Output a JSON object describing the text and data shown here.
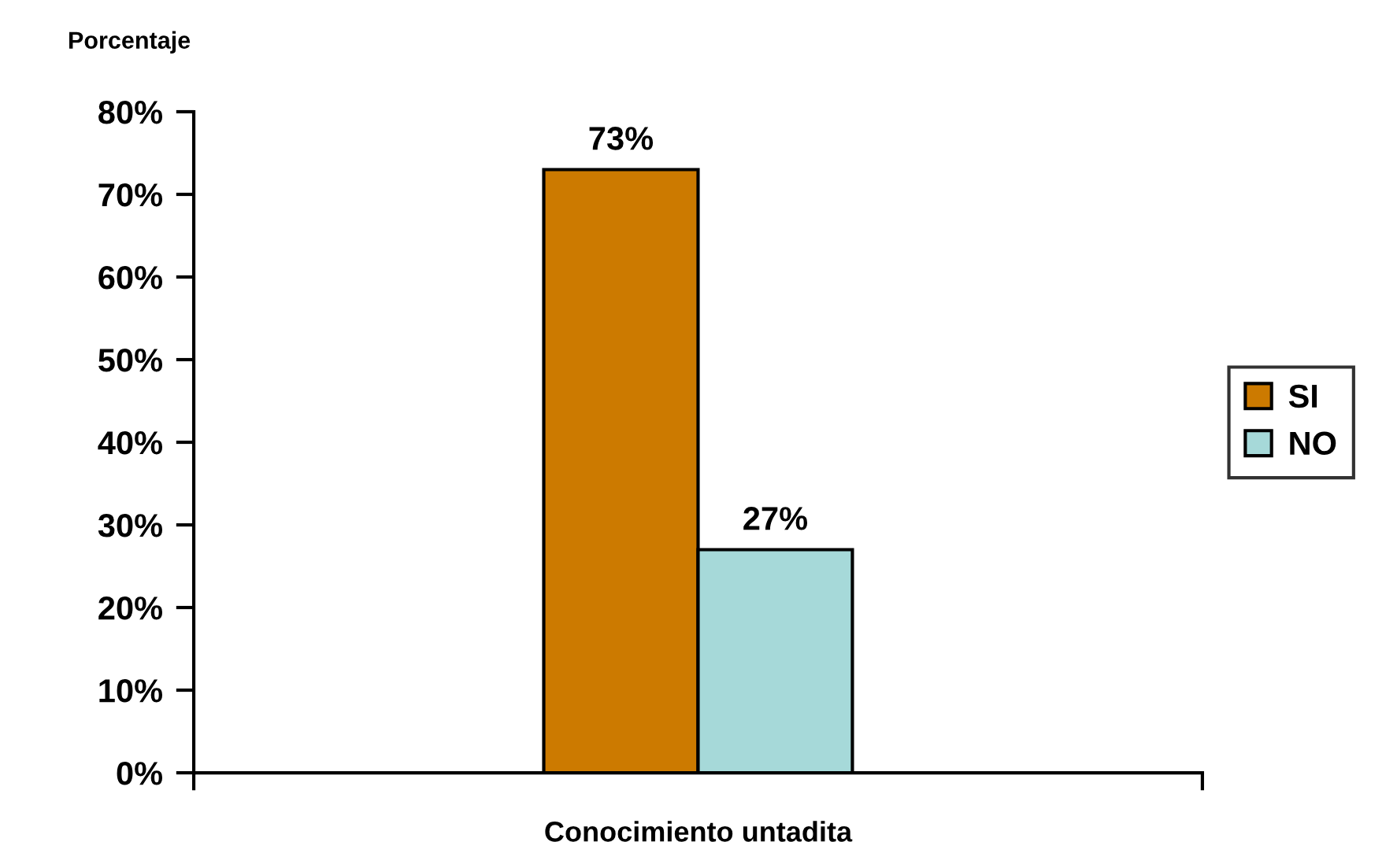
{
  "chart_data": {
    "type": "bar",
    "ylabel": "Porcentaje",
    "categories": [
      "Conocimiento untadita"
    ],
    "series": [
      {
        "name": "SI",
        "color": "#cc7a00",
        "values": [
          73
        ],
        "value_labels": [
          "73%"
        ]
      },
      {
        "name": "NO",
        "color": "#a6d9d9",
        "values": [
          27
        ],
        "value_labels": [
          "27%"
        ]
      }
    ],
    "ylim": [
      0,
      80
    ],
    "yticks": [
      {
        "value": 0,
        "label": "0%"
      },
      {
        "value": 10,
        "label": "10%"
      },
      {
        "value": 20,
        "label": "20%"
      },
      {
        "value": 30,
        "label": "30%"
      },
      {
        "value": 40,
        "label": "40%"
      },
      {
        "value": 50,
        "label": "50%"
      },
      {
        "value": 60,
        "label": "60%"
      },
      {
        "value": 70,
        "label": "70%"
      },
      {
        "value": 80,
        "label": "80%"
      }
    ],
    "legend": "right"
  }
}
